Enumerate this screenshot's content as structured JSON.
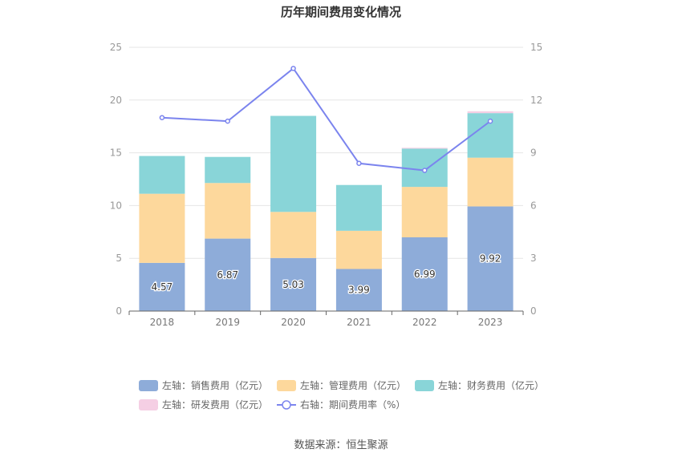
{
  "chart_data": {
    "type": "bar",
    "title": "历年期间费用变化情况",
    "categories": [
      "2018",
      "2019",
      "2020",
      "2021",
      "2022",
      "2023"
    ],
    "left_axis": {
      "ylim": [
        0,
        25
      ],
      "ticks": [
        "0",
        "5",
        "10",
        "15",
        "20",
        "25"
      ]
    },
    "right_axis": {
      "ylim": [
        0,
        15
      ],
      "ticks": [
        "0",
        "3",
        "6",
        "9",
        "12",
        "15"
      ]
    },
    "stacked": true,
    "series": [
      {
        "name": "左轴：销售费用（亿元）",
        "axis": "left",
        "type": "bar",
        "color": "#8eacd9",
        "values": [
          4.57,
          6.87,
          5.03,
          3.99,
          6.99,
          9.92
        ],
        "labels": [
          "4.57",
          "6.87",
          "5.03",
          "3.99",
          "6.99",
          "9.92"
        ]
      },
      {
        "name": "左轴：管理费用（亿元）",
        "axis": "left",
        "type": "bar",
        "color": "#fdd89c",
        "values": [
          6.55,
          5.27,
          4.37,
          3.62,
          4.78,
          4.62
        ]
      },
      {
        "name": "左轴：财务费用（亿元）",
        "axis": "left",
        "type": "bar",
        "color": "#89d5d8",
        "values": [
          3.58,
          2.47,
          9.1,
          4.34,
          3.63,
          4.22
        ]
      },
      {
        "name": "左轴：研发费用（亿元）",
        "axis": "left",
        "type": "bar",
        "color": "#f5cfe4",
        "values": [
          0,
          0,
          0,
          0,
          0.08,
          0.18
        ]
      },
      {
        "name": "右轴：期间费用率（%）",
        "axis": "right",
        "type": "line",
        "color": "#7b84ee",
        "values": [
          11.0,
          10.8,
          13.8,
          8.4,
          8.0,
          10.8
        ]
      }
    ],
    "legend_position": "bottom",
    "grid": true
  },
  "source": "数据来源：恒生聚源"
}
